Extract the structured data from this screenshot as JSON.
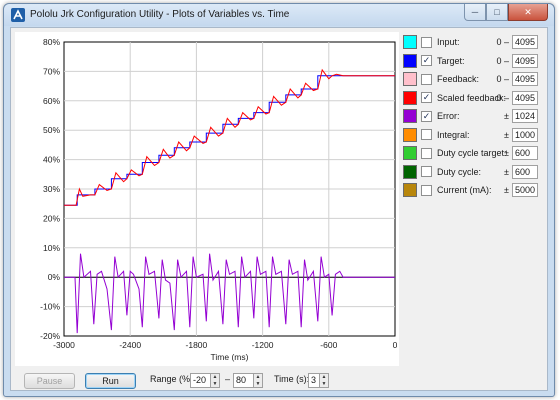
{
  "window": {
    "title": "Pololu Jrk Configuration Utility - Plots of Variables vs. Time",
    "icon": "pololu-app-icon",
    "buttons": [
      "minimize",
      "maximize",
      "close"
    ]
  },
  "plot": {
    "x_axis_label": "Time (ms)",
    "x_ticks": [
      "-3000",
      "-2400",
      "-1800",
      "-1200",
      "-600",
      "0"
    ],
    "y_ticks": [
      "80%",
      "70%",
      "60%",
      "50%",
      "40%",
      "30%",
      "20%",
      "10%",
      "0%",
      "-10%",
      "-20%"
    ]
  },
  "legend": [
    {
      "label": "Input:",
      "color": "#00ffff",
      "checked": false,
      "sign": "0 –",
      "value": "4095"
    },
    {
      "label": "Target:",
      "color": "#0000ff",
      "checked": true,
      "sign": "0 –",
      "value": "4095"
    },
    {
      "label": "Feedback:",
      "color": "#ffc0cb",
      "checked": false,
      "sign": "0 –",
      "value": "4095"
    },
    {
      "label": "Scaled feedback:",
      "color": "#ff0000",
      "checked": true,
      "sign": "0 –",
      "value": "4095"
    },
    {
      "label": "Error:",
      "color": "#9400d3",
      "checked": true,
      "sign": "±",
      "value": "1024"
    },
    {
      "label": "Integral:",
      "color": "#ff8c00",
      "checked": false,
      "sign": "±",
      "value": "1000"
    },
    {
      "label": "Duty cycle target:",
      "color": "#32cd32",
      "checked": false,
      "sign": "±",
      "value": "600"
    },
    {
      "label": "Duty cycle:",
      "color": "#006400",
      "checked": false,
      "sign": "±",
      "value": "600"
    },
    {
      "label": "Current (mA):",
      "color": "#b8860b",
      "checked": false,
      "sign": "±",
      "value": "5000"
    }
  ],
  "controls": {
    "pause_label": "Pause",
    "run_label": "Run",
    "range_label": "Range (%):",
    "range_min": "-20",
    "range_dash": "–",
    "range_max": "80",
    "time_label": "Time (s):",
    "time_value": "3"
  },
  "chart_data": {
    "type": "line",
    "xlabel": "Time (ms)",
    "ylabel": "",
    "xlim": [
      -3000,
      0
    ],
    "ylim": [
      -20,
      80
    ],
    "grid": true,
    "series": [
      {
        "name": "Target:",
        "color": "#0000ff",
        "x": [
          -3000,
          -2880,
          -2880,
          -2720,
          -2720,
          -2570,
          -2570,
          -2430,
          -2430,
          -2290,
          -2290,
          -2140,
          -2140,
          -2000,
          -2000,
          -1860,
          -1860,
          -1710,
          -1710,
          -1560,
          -1560,
          -1420,
          -1420,
          -1280,
          -1280,
          -1140,
          -1140,
          -990,
          -990,
          -850,
          -850,
          -700,
          -700,
          -570,
          -570,
          0
        ],
        "y": [
          24.5,
          24.5,
          28,
          28,
          30,
          30,
          33.5,
          33.5,
          35,
          35,
          39,
          39,
          41.5,
          41.5,
          44,
          44,
          46,
          46,
          49,
          49,
          52,
          52,
          54,
          54,
          56,
          56,
          59.5,
          59.5,
          62,
          62,
          64,
          64,
          68.5,
          68.5,
          68.5,
          68.5
        ]
      },
      {
        "name": "Scaled feedback:",
        "color": "#ff0000",
        "x": [
          -3000,
          -2890,
          -2860,
          -2830,
          -2760,
          -2720,
          -2680,
          -2610,
          -2570,
          -2530,
          -2460,
          -2430,
          -2390,
          -2320,
          -2290,
          -2250,
          -2180,
          -2140,
          -2100,
          -2040,
          -2000,
          -1960,
          -1890,
          -1860,
          -1820,
          -1740,
          -1710,
          -1670,
          -1600,
          -1560,
          -1520,
          -1450,
          -1420,
          -1380,
          -1310,
          -1280,
          -1240,
          -1170,
          -1140,
          -1100,
          -1030,
          -990,
          -950,
          -880,
          -850,
          -810,
          -740,
          -700,
          -660,
          -600,
          -570,
          -530,
          -470,
          0
        ],
        "y": [
          24.5,
          24.5,
          30,
          27.5,
          28,
          28,
          31.5,
          29.5,
          30,
          35.5,
          32.5,
          33.5,
          36.5,
          34.5,
          35,
          41,
          38,
          39,
          43.5,
          40.5,
          41.5,
          46,
          43,
          44,
          48,
          45.5,
          46,
          51,
          48,
          49,
          54,
          51,
          52,
          56,
          53.5,
          54,
          58,
          55.5,
          56,
          61.5,
          58.5,
          59.5,
          64,
          61,
          62,
          66,
          63.5,
          64,
          70.5,
          67.5,
          68.5,
          69,
          68.5,
          68.5
        ]
      },
      {
        "name": "Error:",
        "color": "#9400d3",
        "x": [
          -3000,
          -2900,
          -2880,
          -2850,
          -2820,
          -2760,
          -2730,
          -2700,
          -2660,
          -2610,
          -2570,
          -2540,
          -2510,
          -2460,
          -2430,
          -2400,
          -2370,
          -2320,
          -2290,
          -2260,
          -2230,
          -2180,
          -2140,
          -2110,
          -2080,
          -2040,
          -2000,
          -1970,
          -1940,
          -1890,
          -1860,
          -1830,
          -1800,
          -1740,
          -1710,
          -1680,
          -1650,
          -1600,
          -1560,
          -1530,
          -1500,
          -1450,
          -1420,
          -1390,
          -1360,
          -1310,
          -1280,
          -1250,
          -1220,
          -1170,
          -1140,
          -1110,
          -1080,
          -1030,
          -990,
          -960,
          -930,
          -880,
          -850,
          -820,
          -790,
          -740,
          -700,
          -670,
          -640,
          -600,
          -570,
          -540,
          -500,
          -470,
          0
        ],
        "y": [
          0,
          0,
          -19,
          8,
          0,
          2,
          -16,
          1,
          2,
          -4,
          -18,
          7,
          0,
          2,
          -13,
          2,
          1,
          -4,
          -17,
          7,
          1,
          2,
          -14,
          6,
          -1,
          -2,
          -18,
          6,
          0,
          2,
          -17,
          7,
          0,
          1,
          -15,
          8,
          -1,
          2,
          -16,
          6,
          1,
          2,
          -17,
          7,
          0,
          2,
          -14,
          7,
          1,
          2,
          -17,
          7,
          1,
          2,
          -16,
          6,
          1,
          2,
          -17,
          6,
          -1,
          2,
          -15,
          7,
          0,
          1,
          -13,
          1,
          2,
          0,
          0
        ]
      }
    ]
  }
}
